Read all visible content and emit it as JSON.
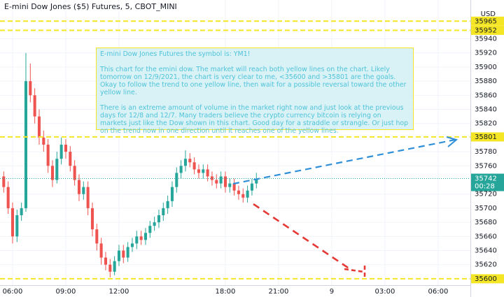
{
  "chart_data": {
    "type": "candlestick",
    "title": "E-mini Dow Jones ($5) Futures, 5, CBOT_MINI",
    "currency": "USD",
    "up_color": "#26a69a",
    "down_color": "#ef5350",
    "grid": true,
    "xlim": [
      -0.71,
      25.82
    ],
    "xticks": [
      {
        "value": 0,
        "label": "06:00"
      },
      {
        "value": 3,
        "label": "09:00"
      },
      {
        "value": 6,
        "label": "12:00"
      },
      {
        "value": 12,
        "label": "18:00"
      },
      {
        "value": 15,
        "label": "21:00"
      },
      {
        "value": 18,
        "label": "9"
      },
      {
        "value": 21,
        "label": "03:00"
      },
      {
        "value": 24,
        "label": "06:00"
      }
    ],
    "ylim": [
      35591,
      35995
    ],
    "yticks": [
      35620,
      35640,
      35660,
      35680,
      35700,
      35720,
      35760,
      35780,
      35820,
      35840,
      35860,
      35880,
      35900,
      35920,
      35940
    ],
    "x": [
      -0.5,
      -0.25,
      0,
      0.25,
      0.5,
      0.75,
      1,
      1.25,
      1.5,
      1.75,
      2,
      2.25,
      2.5,
      2.75,
      3,
      3.25,
      3.5,
      3.75,
      4,
      4.25,
      4.5,
      4.75,
      5,
      5.25,
      5.5,
      5.75,
      6,
      6.25,
      6.5,
      6.75,
      7,
      7.25,
      7.5,
      7.75,
      8,
      8.25,
      8.5,
      8.75,
      9,
      9.25,
      9.5,
      9.75,
      10,
      10.25,
      10.5,
      10.75,
      11,
      11.25,
      11.5,
      11.75,
      12,
      12.25,
      12.5,
      12.75,
      13,
      13.25,
      13.5,
      13.75
    ],
    "open": [
      35745,
      35730,
      35700,
      35660,
      35690,
      35700,
      35880,
      35860,
      35830,
      35800,
      35790,
      35760,
      35740,
      35770,
      35790,
      35780,
      35760,
      35740,
      35720,
      35730,
      35700,
      35670,
      35650,
      35630,
      35620,
      35610,
      35625,
      35640,
      35630,
      35645,
      35650,
      35660,
      35655,
      35665,
      35675,
      35680,
      35690,
      35700,
      35710,
      35730,
      35750,
      35760,
      35770,
      35765,
      35755,
      35750,
      35755,
      35745,
      35740,
      35735,
      35745,
      35730,
      35735,
      35725,
      35720,
      35715,
      35725,
      35735
    ],
    "high": [
      35752,
      35738,
      35708,
      35698,
      35708,
      35920,
      35905,
      35870,
      35840,
      35810,
      35798,
      35768,
      35780,
      35800,
      35798,
      35788,
      35768,
      35748,
      35738,
      35738,
      35708,
      35678,
      35658,
      35638,
      35628,
      35632,
      35648,
      35648,
      35652,
      35658,
      35668,
      35668,
      35672,
      35682,
      35688,
      35698,
      35708,
      35718,
      35738,
      35758,
      35768,
      35782,
      35778,
      35772,
      35762,
      35762,
      35762,
      35752,
      35748,
      35752,
      35752,
      35742,
      35742,
      35732,
      35728,
      35732,
      35742,
      35750
    ],
    "low": [
      35722,
      35692,
      35650,
      35652,
      35682,
      35695,
      35850,
      35820,
      35790,
      35780,
      35750,
      35730,
      35735,
      35762,
      35770,
      35752,
      35732,
      35710,
      35712,
      35690,
      35660,
      35640,
      35620,
      35612,
      35602,
      35605,
      35618,
      35622,
      35624,
      35638,
      35642,
      35648,
      35648,
      35658,
      35668,
      35672,
      35682,
      35692,
      35702,
      35722,
      35742,
      35752,
      35758,
      35748,
      35742,
      35742,
      35738,
      35732,
      35728,
      35728,
      35722,
      35722,
      35718,
      35712,
      35708,
      35708,
      35718,
      35728
    ],
    "close": [
      35730,
      35700,
      35660,
      35690,
      35700,
      35880,
      35860,
      35830,
      35800,
      35790,
      35760,
      35740,
      35770,
      35790,
      35780,
      35760,
      35740,
      35720,
      35730,
      35700,
      35670,
      35650,
      35630,
      35620,
      35610,
      35625,
      35640,
      35630,
      35645,
      35650,
      35660,
      35655,
      35665,
      35675,
      35680,
      35690,
      35700,
      35710,
      35730,
      35750,
      35760,
      35770,
      35765,
      35755,
      35750,
      35755,
      35745,
      35740,
      35735,
      35745,
      35730,
      35735,
      35725,
      35720,
      35715,
      35725,
      35735,
      35742
    ],
    "hlines": [
      {
        "value": 35965,
        "color": "#f5e625"
      },
      {
        "value": 35952,
        "color": "#f5e625"
      },
      {
        "value": 35801,
        "color": "#f5e625"
      },
      {
        "value": 35600,
        "color": "#f5e625"
      }
    ],
    "last_price": {
      "value": 35742,
      "countdown": "00:28",
      "color": "#26a69a"
    },
    "annotation": [
      "E-mini Dow Jones Futures the symbol is: YM1!",
      "This chart for the emini dow. The market will reach both yellow lines on the chart. Likely tomorrow on 12/9/2021, the chart is very clear to me, <35600 and >35801 are the goals. Okay to follow the trend to one yellow line, then wait for a possible reversal toward the other yellow line.",
      "There is an extreme amount of volume in the market right now and just look at the previous days for 12/8 and 12/7. Many traders believe the crypto currency bitcoin is relying on markets just like the Dow shown in this chart. Good day for a straddle or strangle. Or just hop on the trend now in one direction until it reaches one of the yellow lines."
    ]
  }
}
